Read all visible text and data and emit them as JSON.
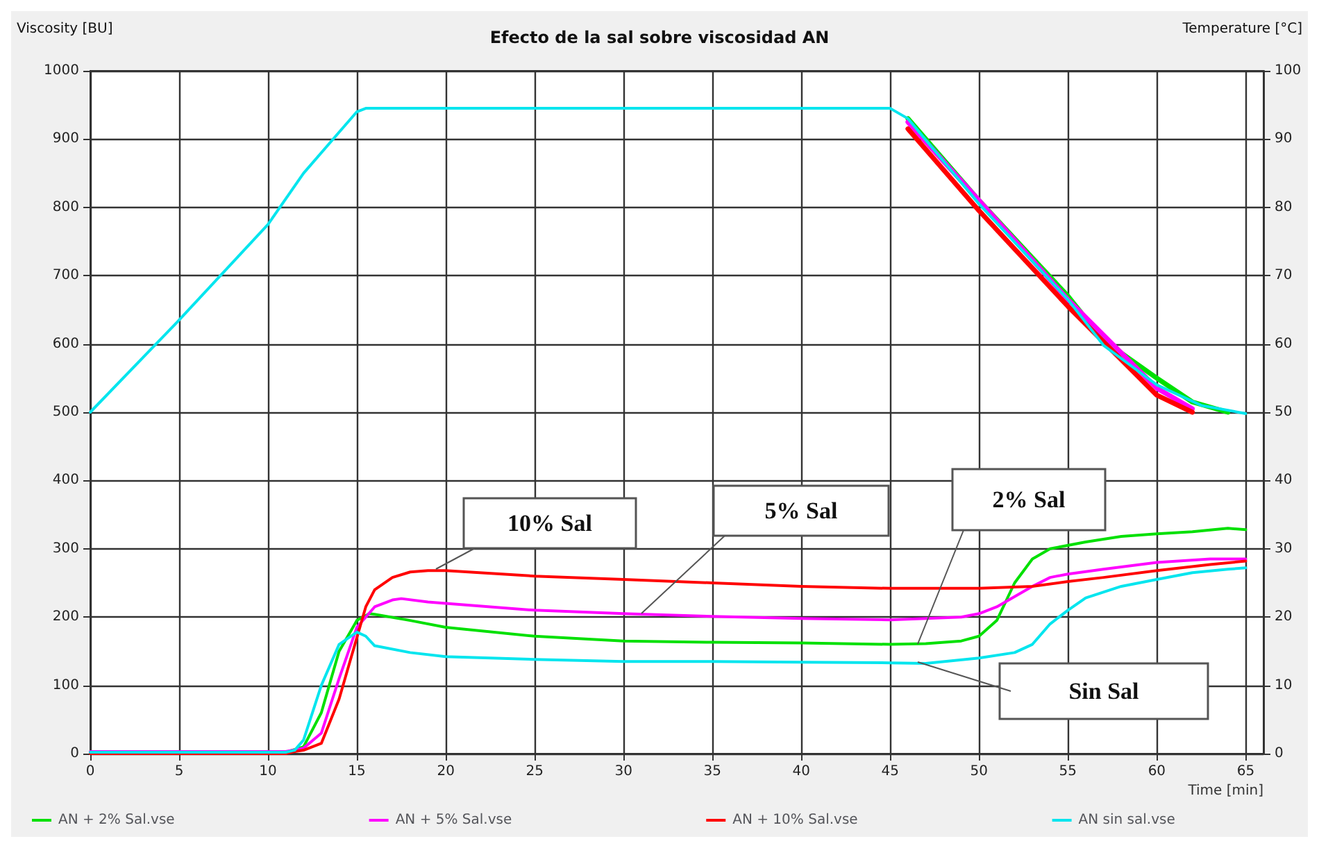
{
  "chart_data": {
    "type": "line",
    "title": "Efecto de la sal sobre viscosidad AN",
    "xlabel": "Time [min]",
    "ylabel": "Viscosity [BU]",
    "y2label": "Temperature [°C]",
    "xlim": [
      0,
      66
    ],
    "xticks": [
      0,
      5,
      10,
      15,
      20,
      25,
      30,
      35,
      40,
      45,
      50,
      55,
      60,
      65
    ],
    "ylim": [
      0,
      1000
    ],
    "yticks": [
      0,
      100,
      200,
      300,
      400,
      500,
      600,
      700,
      800,
      900,
      1000
    ],
    "y2lim": [
      0,
      100
    ],
    "y2ticks": [
      0,
      10,
      20,
      30,
      40,
      50,
      60,
      70,
      80,
      90,
      100
    ],
    "grid": true,
    "legend": "bottom",
    "marker": "none",
    "line_style": "solid",
    "series": [
      {
        "name": "AN + 2% Sal.vse",
        "color": "#00e000",
        "x": [
          0,
          11,
          12,
          13,
          14,
          15,
          15.7,
          16,
          18,
          20,
          25,
          30,
          35,
          40,
          45,
          47,
          49,
          50,
          51,
          52,
          53,
          54,
          56,
          58,
          60,
          62,
          64,
          65
        ],
        "values": [
          2,
          2,
          10,
          60,
          150,
          195,
          205,
          204,
          195,
          185,
          172,
          165,
          163,
          162,
          160,
          161,
          165,
          172,
          195,
          250,
          285,
          300,
          310,
          318,
          322,
          325,
          330,
          328
        ]
      },
      {
        "name": "AN + 5% Sal.vse",
        "color": "#ff00ff",
        "x": [
          0,
          11,
          12,
          13,
          14,
          15,
          16,
          17,
          17.5,
          19,
          20,
          25,
          30,
          35,
          40,
          45,
          49,
          50,
          51,
          52,
          53,
          54,
          55,
          57,
          60,
          63,
          65
        ],
        "values": [
          3,
          3,
          8,
          30,
          110,
          185,
          215,
          225,
          227,
          222,
          220,
          210,
          205,
          201,
          198,
          196,
          200,
          205,
          215,
          230,
          245,
          258,
          263,
          270,
          280,
          285,
          285
        ]
      },
      {
        "name": "AN + 10% Sal.vse",
        "color": "#ff0000",
        "x": [
          0,
          11,
          11.5,
          12,
          13,
          14,
          15,
          15.5,
          16,
          17,
          18,
          19,
          20,
          25,
          30,
          35,
          40,
          45,
          50,
          53,
          55,
          57,
          60,
          63,
          65
        ],
        "values": [
          0,
          0,
          3,
          5,
          15,
          80,
          170,
          215,
          240,
          258,
          266,
          268,
          268,
          260,
          255,
          250,
          245,
          242,
          242,
          245,
          252,
          258,
          268,
          277,
          282
        ]
      },
      {
        "name": "AN sin sal.vse",
        "color": "#00e5ee",
        "x": [
          0,
          11,
          11.5,
          12,
          13,
          14,
          15,
          15.5,
          16,
          18,
          20,
          25,
          30,
          35,
          40,
          45,
          47,
          50,
          52,
          53,
          54,
          55,
          56,
          58,
          60,
          62,
          64,
          65
        ],
        "values": [
          2,
          2,
          5,
          20,
          100,
          160,
          178,
          172,
          158,
          148,
          142,
          138,
          135,
          135,
          134,
          133,
          132,
          140,
          148,
          160,
          190,
          210,
          228,
          245,
          255,
          265,
          270,
          272
        ]
      },
      {
        "color": "#00e000",
        "axis": "y2",
        "x": [
          46,
          50,
          55,
          57,
          60,
          62,
          64
        ],
        "values": [
          93,
          81,
          67,
          60.5,
          55,
          51.5,
          50
        ]
      },
      {
        "color": "#ff00ff",
        "axis": "y2",
        "x": [
          46,
          50,
          55,
          60,
          62
        ],
        "values": [
          92.5,
          81,
          66.5,
          53.5,
          50.5
        ]
      },
      {
        "color": "#ff0000",
        "axis": "y2",
        "x": [
          46,
          50,
          55,
          60,
          62
        ],
        "values": [
          91.5,
          79.5,
          65.5,
          52.5,
          50
        ]
      },
      {
        "color": "#00e5ee",
        "axis": "y2",
        "x": [
          0,
          5,
          10,
          12,
          14,
          15,
          15.5,
          20,
          30,
          40,
          45,
          46,
          50,
          55,
          57,
          60,
          62.5,
          65
        ],
        "values": [
          50,
          63.5,
          77.5,
          85,
          91,
          94,
          94.5,
          94.5,
          94.5,
          94.5,
          94.5,
          93,
          80.5,
          66.5,
          59.8,
          54,
          51,
          49.8
        ]
      }
    ],
    "annotations": [
      "10% Sal",
      "5% Sal",
      "2% Sal",
      "Sin Sal"
    ]
  }
}
